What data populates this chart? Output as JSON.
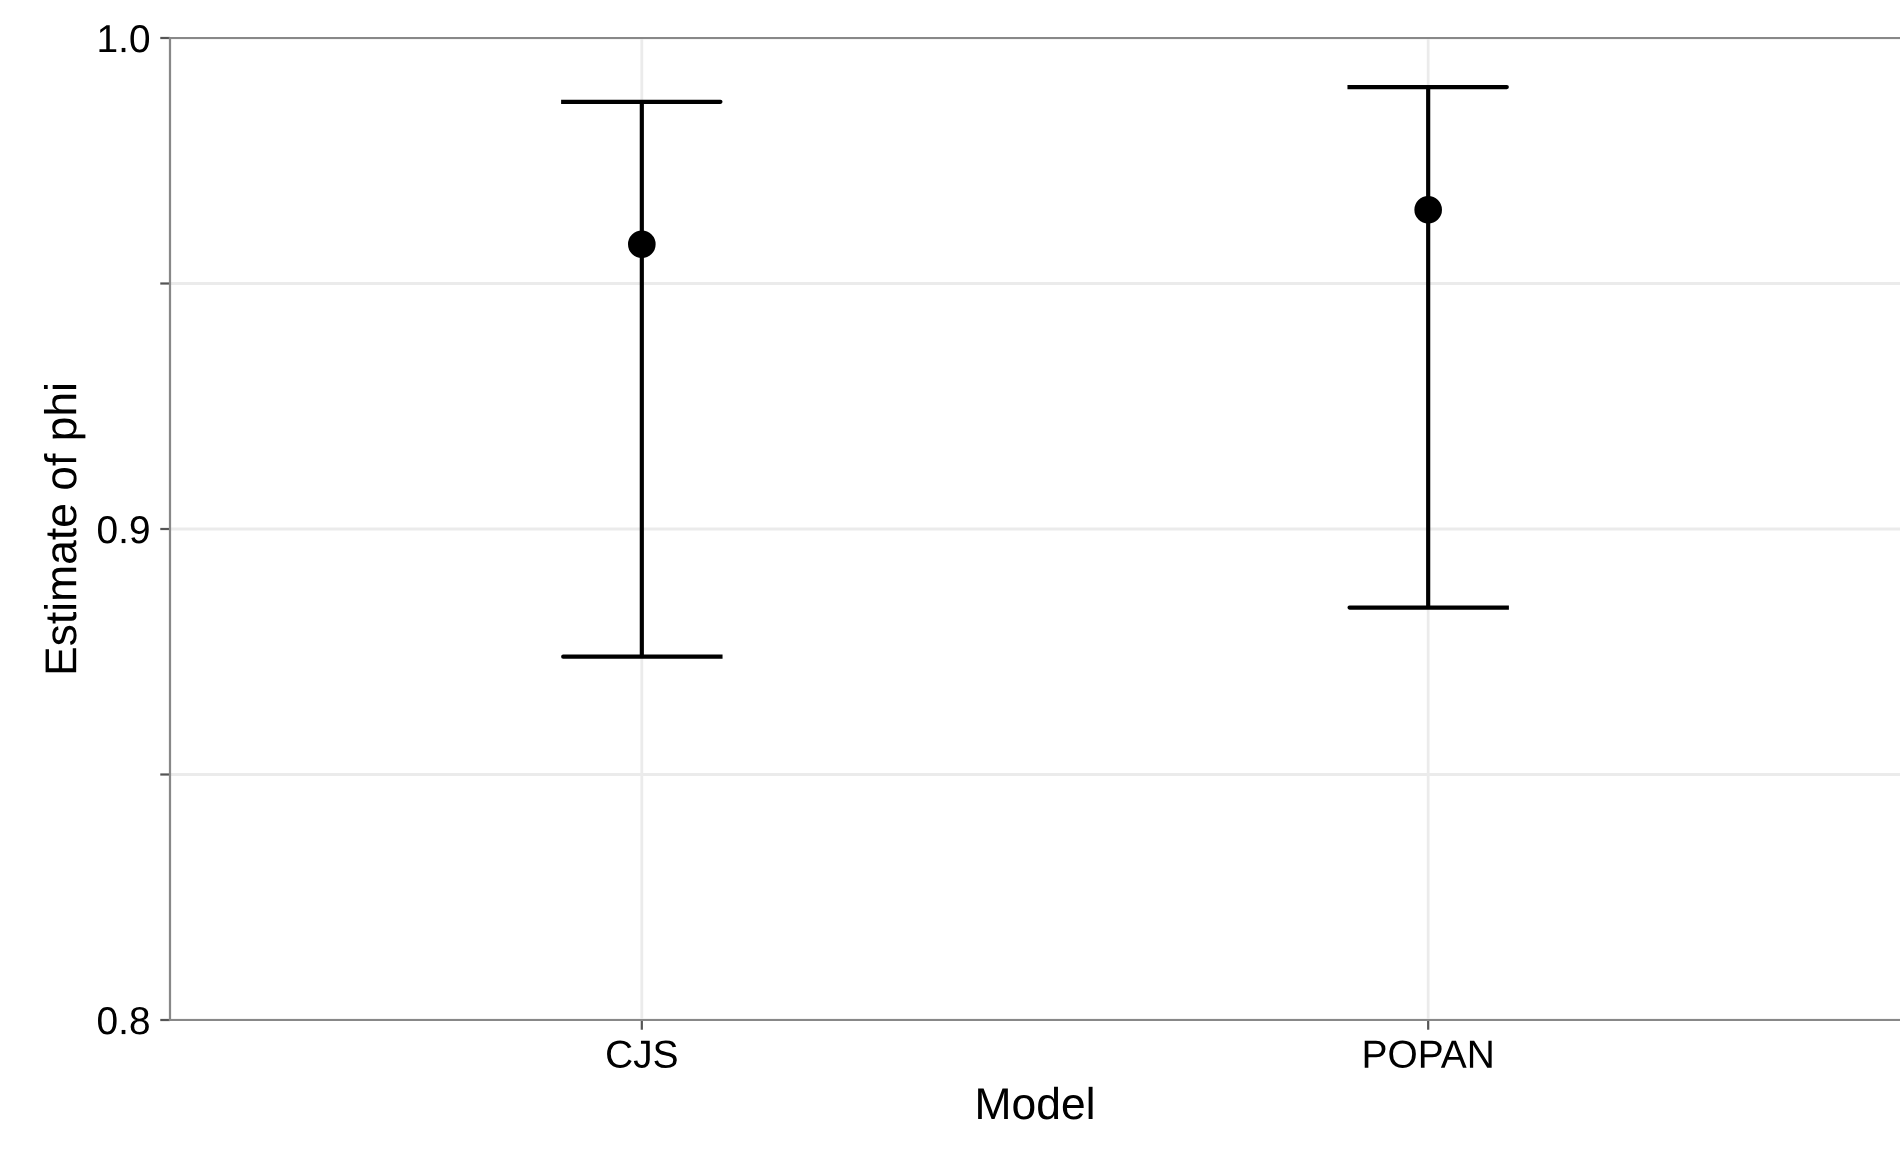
{
  "chart_data": {
    "type": "scatter",
    "xlabel": "Model",
    "ylabel": "Estimate of phi",
    "categories": [
      "CJS",
      "POPAN"
    ],
    "color": "#000000",
    "values": [
      0.958,
      0.965
    ],
    "errors": [
      [
        0.874,
        0.987
      ],
      [
        0.884,
        0.99
      ]
    ],
    "ylim": [
      0.8,
      1.0
    ],
    "yticks": [
      {
        "value": 0.8,
        "label": "0.8"
      },
      {
        "value": 0.85,
        "label": null
      },
      {
        "value": 0.9,
        "label": "0.9"
      },
      {
        "value": 0.95,
        "label": null
      },
      {
        "value": 1.0,
        "label": "1.0"
      }
    ],
    "grid": true,
    "marker": "circle"
  }
}
